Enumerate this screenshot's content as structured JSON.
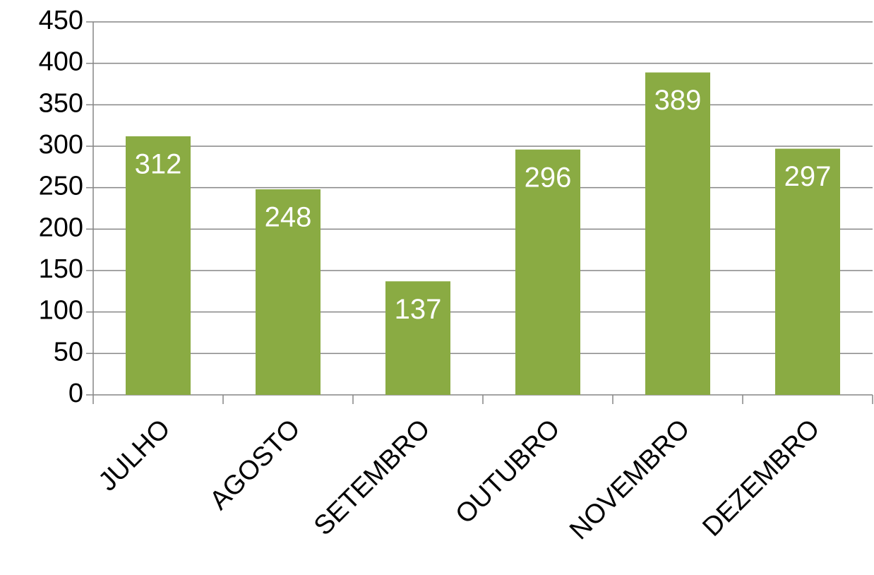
{
  "chart_data": {
    "type": "bar",
    "categories": [
      "JULHO",
      "AGOSTO",
      "SETEMBRO",
      "OUTUBRO",
      "NOVEMBRO",
      "DEZEMBRO"
    ],
    "values": [
      312,
      248,
      137,
      296,
      389,
      297
    ],
    "color": "#8aab43",
    "ylim": [
      0,
      450
    ],
    "yticks": [
      0,
      50,
      100,
      150,
      200,
      250,
      300,
      350,
      400,
      450
    ],
    "grid": true
  }
}
